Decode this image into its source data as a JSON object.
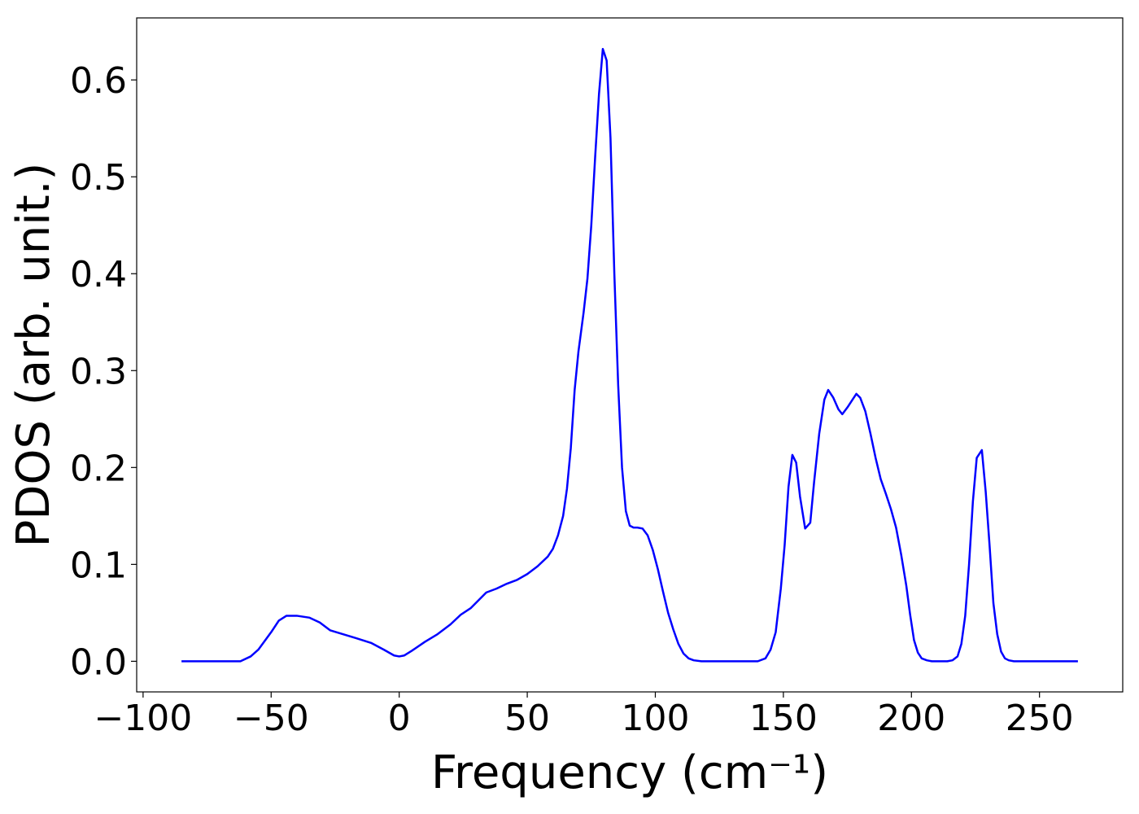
{
  "chart_data": {
    "type": "line",
    "x_label": "Frequency (cm⁻¹)",
    "y_label": "PDOS (arb. unit.)",
    "series": [
      {
        "name": "PDOS",
        "color": "#0000ff",
        "x": [
          -85,
          -62,
          -58,
          -55,
          -50,
          -47,
          -44,
          -40,
          -35,
          -31,
          -27,
          -22,
          -17,
          -11,
          -6,
          -2,
          0,
          2,
          5,
          10,
          15,
          20,
          24,
          28,
          31,
          34,
          38,
          42,
          46,
          50,
          54,
          58,
          60,
          62,
          64,
          65.5,
          67,
          68.5,
          70,
          72,
          73.5,
          75,
          76.5,
          78,
          79.5,
          81,
          82.5,
          84,
          85.5,
          87,
          88.5,
          90,
          91.5,
          93,
          95,
          97,
          99,
          101,
          103,
          105,
          107,
          109,
          111,
          113,
          115,
          118,
          140,
          143,
          145,
          147,
          149,
          150.5,
          152,
          153.5,
          155,
          156.5,
          158.5,
          160.5,
          162,
          164,
          166,
          167.5,
          169.5,
          171.5,
          173,
          175,
          177,
          178.5,
          180,
          182,
          184,
          186,
          188,
          190,
          192,
          194,
          196,
          198,
          199.5,
          201,
          202.5,
          204,
          206,
          208,
          214,
          216,
          218,
          219.5,
          221,
          222.5,
          224,
          225.5,
          227.5,
          229,
          230.5,
          232,
          233.5,
          235,
          236.5,
          238,
          240,
          265
        ],
        "values": [
          0,
          0,
          0.005,
          0.012,
          0.03,
          0.042,
          0.047,
          0.047,
          0.045,
          0.04,
          0.032,
          0.028,
          0.024,
          0.019,
          0.012,
          0.006,
          0.005,
          0.006,
          0.011,
          0.02,
          0.028,
          0.038,
          0.048,
          0.055,
          0.063,
          0.071,
          0.075,
          0.08,
          0.084,
          0.09,
          0.098,
          0.108,
          0.116,
          0.13,
          0.15,
          0.178,
          0.22,
          0.28,
          0.32,
          0.36,
          0.395,
          0.45,
          0.52,
          0.585,
          0.632,
          0.62,
          0.54,
          0.4,
          0.285,
          0.2,
          0.155,
          0.14,
          0.138,
          0.138,
          0.137,
          0.13,
          0.115,
          0.095,
          0.072,
          0.05,
          0.033,
          0.018,
          0.008,
          0.003,
          0.001,
          0,
          0,
          0.003,
          0.012,
          0.03,
          0.075,
          0.12,
          0.18,
          0.213,
          0.205,
          0.17,
          0.137,
          0.143,
          0.185,
          0.235,
          0.27,
          0.28,
          0.272,
          0.26,
          0.255,
          0.262,
          0.27,
          0.276,
          0.272,
          0.258,
          0.235,
          0.21,
          0.188,
          0.173,
          0.157,
          0.138,
          0.11,
          0.078,
          0.048,
          0.022,
          0.009,
          0.003,
          0.001,
          0,
          0,
          0.001,
          0.005,
          0.018,
          0.047,
          0.1,
          0.165,
          0.21,
          0.218,
          0.175,
          0.12,
          0.06,
          0.028,
          0.01,
          0.003,
          0.001,
          0,
          0
        ]
      }
    ],
    "xlim": [
      -102.5,
      282.5
    ],
    "ylim": [
      -0.0316,
      0.664
    ],
    "xticks": [
      {
        "value": -100,
        "label": "−100"
      },
      {
        "value": -50,
        "label": "−50"
      },
      0,
      50,
      100,
      150,
      200,
      250
    ],
    "yticks": [
      {
        "value": 0,
        "label": "0.0"
      },
      0.1,
      0.2,
      0.3,
      0.4,
      0.5,
      0.6
    ]
  }
}
